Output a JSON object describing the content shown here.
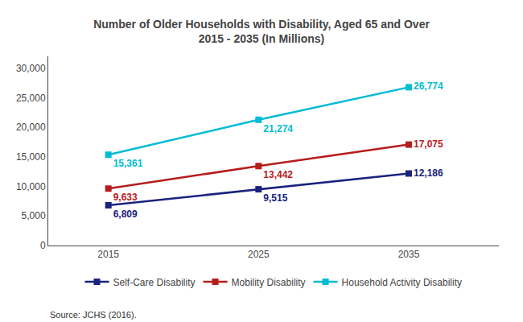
{
  "chart_data": {
    "type": "line",
    "title": "Number of Older Households with Disability, Aged 65 and Over\n2015 - 2035 (In Millions)",
    "x": [
      2015,
      2025,
      2035
    ],
    "series": [
      {
        "name": "Self-Care Disability",
        "color": "#1a237e",
        "marker": "square",
        "values": [
          6809,
          9515,
          12186
        ],
        "value_labels": [
          "6,809",
          "9,515",
          "12,186"
        ]
      },
      {
        "name": "Mobility Disability",
        "color": "#b71c1c",
        "marker": "square",
        "values": [
          9633,
          13442,
          17075
        ],
        "value_labels": [
          "9,633",
          "13,442",
          "17,075"
        ]
      },
      {
        "name": "Household Activity Disability",
        "color": "#00bcd4",
        "marker": "square",
        "values": [
          15361,
          21274,
          26774
        ],
        "value_labels": [
          "15,361",
          "21,274",
          "26,774"
        ]
      }
    ],
    "xlim": [
      2011,
      2041
    ],
    "xticks": [
      2015,
      2025,
      2035
    ],
    "ylim": [
      0,
      32000
    ],
    "yticks": [
      0,
      {
        "value": 5000,
        "label": "5,000"
      },
      {
        "value": 10000,
        "label": "10,000"
      },
      {
        "value": 15000,
        "label": "15,000"
      },
      {
        "value": 20000,
        "label": "20,000"
      },
      {
        "value": 25000,
        "label": "25,000"
      },
      {
        "value": 30000,
        "label": "30,000"
      }
    ],
    "annotations": [
      "Source: JCHS (2016)."
    ],
    "grid": false,
    "legend": "bottom",
    "data_labels": true
  }
}
